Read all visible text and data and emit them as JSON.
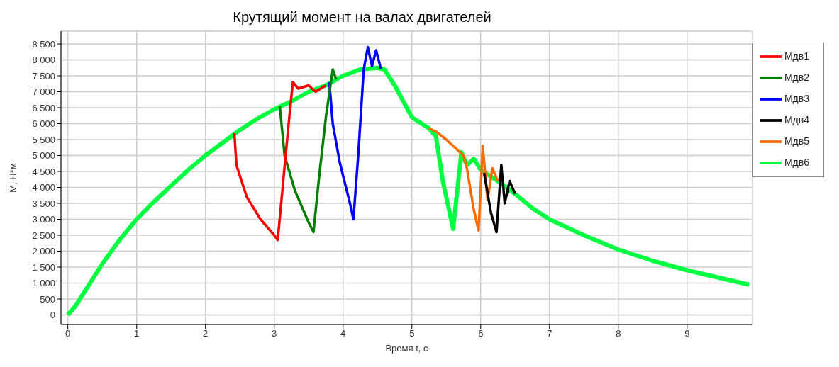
{
  "chart_data": {
    "type": "line",
    "title": "Крутящий момент на валах двигателей",
    "xlabel": "Время t, c",
    "ylabel": "М, Н*м",
    "xlim": [
      -0.1,
      9.95
    ],
    "xticks": [
      0,
      1,
      2,
      3,
      4,
      5,
      6,
      7,
      8,
      9
    ],
    "ylim": [
      -300,
      8900
    ],
    "yticks": [
      0,
      500,
      {
        "value": 1000,
        "label": "1 000"
      },
      {
        "value": 1500,
        "label": "1 500"
      },
      {
        "value": 2000,
        "label": "2 000"
      },
      {
        "value": 2500,
        "label": "2 500"
      },
      {
        "value": 3000,
        "label": "3 000"
      },
      {
        "value": 3500,
        "label": "3 500"
      },
      {
        "value": 4000,
        "label": "4 000"
      },
      {
        "value": 4500,
        "label": "4 500"
      },
      {
        "value": 5000,
        "label": "5 000"
      },
      {
        "value": 5500,
        "label": "5 500"
      },
      {
        "value": 6000,
        "label": "6 000"
      },
      {
        "value": 6500,
        "label": "6 500"
      },
      {
        "value": 7000,
        "label": "7 000"
      },
      {
        "value": 7500,
        "label": "7 500"
      },
      {
        "value": 8000,
        "label": "8 000"
      },
      {
        "value": 8500,
        "label": "8 500"
      }
    ],
    "grid": true,
    "legend": "right",
    "marker": "none",
    "line_style": "solid",
    "series": [
      {
        "name": "Мдв1",
        "color": "#ff0000",
        "x": [
          2.42,
          2.45,
          2.6,
          2.8,
          3,
          3.05,
          3.1,
          3.2,
          3.27,
          3.35,
          3.5,
          3.6,
          3.75
        ],
        "values": [
          5700,
          4700,
          3700,
          3000,
          2500,
          2350,
          3500,
          5800,
          7300,
          7100,
          7200,
          7000,
          7200
        ]
      },
      {
        "name": "Мдв2",
        "color": "#007f00",
        "x": [
          3.08,
          3.15,
          3.3,
          3.5,
          3.57,
          3.65,
          3.75,
          3.85,
          3.9
        ],
        "values": [
          6550,
          5000,
          3900,
          2900,
          2600,
          4300,
          6200,
          7700,
          7380
        ]
      },
      {
        "name": "Мдв3",
        "color": "#0000ff",
        "x": [
          3.8,
          3.85,
          3.95,
          4.1,
          4.15,
          4.22,
          4.3,
          4.36,
          4.42,
          4.48,
          4.55
        ],
        "values": [
          7300,
          6000,
          4800,
          3500,
          3000,
          5000,
          7700,
          8400,
          7800,
          8300,
          7720
        ]
      },
      {
        "name": "Мдв4",
        "color": "#000000",
        "x": [
          6.05,
          6.15,
          6.23,
          6.3,
          6.35,
          6.42,
          6.5
        ],
        "values": [
          4450,
          3200,
          2600,
          4700,
          3500,
          4200,
          3800
        ]
      },
      {
        "name": "Мдв5",
        "color": "#ff6a00",
        "x": [
          5.25,
          5.35,
          5.5,
          5.75,
          5.8,
          5.9,
          5.97,
          6.03,
          6.1,
          6.17,
          6.25
        ],
        "values": [
          5850,
          5750,
          5500,
          5000,
          4600,
          3300,
          2650,
          5300,
          3600,
          4600,
          4200
        ]
      },
      {
        "name": "Мдв6",
        "color": "#00ff40",
        "x": [
          0,
          0.1,
          0.25,
          0.5,
          0.75,
          1,
          1.25,
          1.5,
          1.75,
          2,
          2.25,
          2.5,
          2.75,
          3,
          3.25,
          3.5,
          3.75,
          4,
          4.25,
          4.5,
          4.6,
          4.75,
          5,
          5.25,
          5.35,
          5.45,
          5.6,
          5.72,
          5.8,
          5.9,
          6,
          6.25,
          6.5,
          6.75,
          7,
          7.5,
          8,
          8.5,
          9,
          9.5,
          9.9
        ],
        "values": [
          0,
          250,
          750,
          1600,
          2350,
          3000,
          3550,
          4050,
          4550,
          5000,
          5400,
          5800,
          6150,
          6450,
          6700,
          7000,
          7200,
          7500,
          7700,
          7750,
          7700,
          7200,
          6200,
          5850,
          5600,
          4200,
          2700,
          5100,
          4700,
          4900,
          4550,
          4200,
          3800,
          3350,
          3000,
          2500,
          2050,
          1700,
          1400,
          1150,
          950
        ]
      }
    ]
  }
}
